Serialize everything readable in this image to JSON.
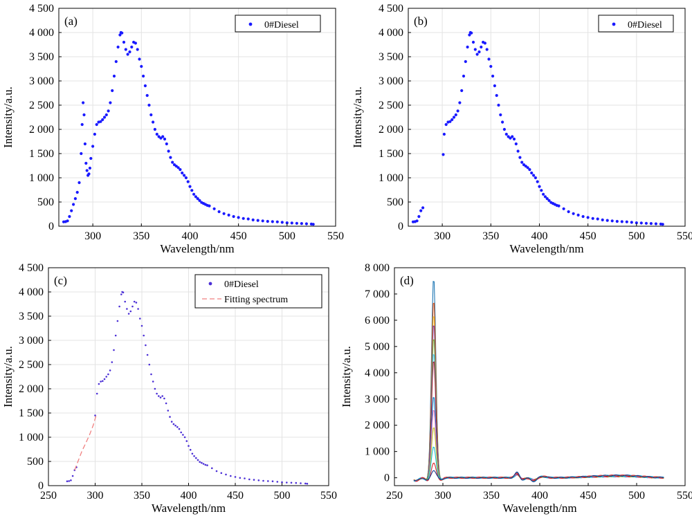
{
  "chart_data": [
    {
      "type": "scatter",
      "panel_label": "(a)",
      "xlabel": "Wavelength/nm",
      "ylabel": "Intensity/a.u.",
      "xlim": [
        265,
        550
      ],
      "ylim": [
        0,
        4500
      ],
      "xticks": [
        300,
        350,
        400,
        450,
        500,
        550
      ],
      "yticks": [
        0,
        500,
        1000,
        1500,
        2000,
        2500,
        3000,
        3500,
        4000,
        4500
      ],
      "ytick_labels": [
        "0",
        "500",
        "1 000",
        "1 500",
        "2 000",
        "2 500",
        "3 000",
        "3 500",
        "4 000",
        "4 500"
      ],
      "grid": true,
      "legend_position": "top-right",
      "series": [
        {
          "name": "0#Diesel",
          "color": "#1a1aff",
          "marker": "dot",
          "x": [
            270,
            272,
            274,
            276,
            278,
            280,
            282,
            284,
            286,
            288,
            289,
            290,
            291,
            292,
            293,
            294,
            295,
            296,
            297,
            298,
            300,
            302,
            304,
            306,
            308,
            310,
            312,
            314,
            316,
            318,
            320,
            322,
            324,
            326,
            328,
            329,
            330,
            332,
            334,
            336,
            338,
            340,
            342,
            344,
            346,
            348,
            350,
            352,
            354,
            356,
            358,
            360,
            362,
            364,
            366,
            368,
            370,
            372,
            374,
            376,
            378,
            380,
            382,
            384,
            386,
            388,
            390,
            392,
            394,
            396,
            398,
            400,
            402,
            404,
            406,
            408,
            410,
            412,
            414,
            416,
            418,
            420,
            425,
            430,
            435,
            440,
            445,
            450,
            455,
            460,
            465,
            470,
            475,
            480,
            485,
            490,
            495,
            500,
            505,
            510,
            515,
            520,
            525,
            527
          ],
          "y": [
            90,
            95,
            110,
            200,
            320,
            450,
            570,
            700,
            900,
            1500,
            2100,
            2550,
            2300,
            1700,
            1300,
            1150,
            1050,
            1080,
            1200,
            1400,
            1650,
            1900,
            2100,
            2150,
            2160,
            2200,
            2250,
            2300,
            2380,
            2550,
            2800,
            3100,
            3400,
            3700,
            3950,
            4000,
            3990,
            3800,
            3650,
            3550,
            3600,
            3700,
            3800,
            3780,
            3650,
            3450,
            3300,
            3100,
            2900,
            2700,
            2500,
            2300,
            2150,
            2000,
            1900,
            1850,
            1820,
            1850,
            1800,
            1700,
            1550,
            1420,
            1320,
            1270,
            1240,
            1210,
            1170,
            1100,
            1050,
            1000,
            920,
            820,
            740,
            660,
            610,
            570,
            530,
            490,
            470,
            450,
            430,
            420,
            360,
            300,
            260,
            230,
            200,
            180,
            160,
            150,
            130,
            120,
            110,
            100,
            95,
            90,
            80,
            70,
            65,
            60,
            55,
            50,
            45,
            40
          ]
        }
      ]
    },
    {
      "type": "scatter",
      "panel_label": "(b)",
      "xlabel": "Wavelength/nm",
      "ylabel": "Intensity/a.u.",
      "xlim": [
        265,
        550
      ],
      "ylim": [
        0,
        4500
      ],
      "xticks": [
        300,
        350,
        400,
        450,
        500,
        550
      ],
      "yticks": [
        0,
        500,
        1000,
        1500,
        2000,
        2500,
        3000,
        3500,
        4000,
        4500
      ],
      "ytick_labels": [
        "0",
        "500",
        "1 000",
        "1 500",
        "2 000",
        "2 500",
        "3 000",
        "3 500",
        "4 000",
        "4 500"
      ],
      "grid": true,
      "legend_position": "top-right",
      "series": [
        {
          "name": "0#Diesel",
          "color": "#1a1aff",
          "marker": "dot",
          "x": [
            270,
            272,
            274,
            276,
            278,
            280,
            301,
            302,
            304,
            306,
            308,
            310,
            312,
            314,
            316,
            318,
            320,
            322,
            324,
            326,
            328,
            329,
            330,
            332,
            334,
            336,
            338,
            340,
            342,
            344,
            346,
            348,
            350,
            352,
            354,
            356,
            358,
            360,
            362,
            364,
            366,
            368,
            370,
            372,
            374,
            376,
            378,
            380,
            382,
            384,
            386,
            388,
            390,
            392,
            394,
            396,
            398,
            400,
            402,
            404,
            406,
            408,
            410,
            412,
            414,
            416,
            418,
            420,
            425,
            430,
            435,
            440,
            445,
            450,
            455,
            460,
            465,
            470,
            475,
            480,
            485,
            490,
            495,
            500,
            505,
            510,
            515,
            520,
            525,
            527
          ],
          "y": [
            90,
            95,
            110,
            200,
            320,
            380,
            1480,
            1900,
            2100,
            2150,
            2160,
            2200,
            2250,
            2300,
            2380,
            2550,
            2800,
            3100,
            3400,
            3700,
            3950,
            4000,
            3990,
            3800,
            3650,
            3550,
            3600,
            3700,
            3800,
            3780,
            3650,
            3450,
            3300,
            3100,
            2900,
            2700,
            2500,
            2300,
            2150,
            2000,
            1900,
            1850,
            1820,
            1850,
            1800,
            1700,
            1550,
            1420,
            1320,
            1270,
            1240,
            1210,
            1170,
            1100,
            1050,
            1000,
            920,
            820,
            740,
            660,
            610,
            570,
            530,
            490,
            470,
            450,
            430,
            420,
            360,
            300,
            260,
            230,
            200,
            180,
            160,
            150,
            130,
            120,
            110,
            100,
            95,
            90,
            80,
            70,
            65,
            60,
            55,
            50,
            45,
            40
          ]
        }
      ]
    },
    {
      "type": "line",
      "panel_label": "(c)",
      "xlabel": "Wavelength/nm",
      "ylabel": "Intensity/a.u.",
      "xlim": [
        250,
        550
      ],
      "ylim": [
        0,
        4500
      ],
      "xticks": [
        250,
        300,
        350,
        400,
        450,
        500,
        550
      ],
      "yticks": [
        0,
        500,
        1000,
        1500,
        2000,
        2500,
        3000,
        3500,
        4000,
        4500
      ],
      "ytick_labels": [
        "0",
        "500",
        "1 000",
        "1 500",
        "2 000",
        "2 500",
        "3 000",
        "3 500",
        "4 000",
        "4 500"
      ],
      "grid": true,
      "legend_position": "top-right",
      "series": [
        {
          "name": "0#Diesel",
          "color": "#4b2fd6",
          "marker": "dot",
          "x": [
            270,
            272,
            274,
            276,
            278,
            280,
            300,
            302,
            304,
            306,
            308,
            310,
            312,
            314,
            316,
            318,
            320,
            322,
            324,
            326,
            328,
            329,
            330,
            332,
            334,
            336,
            338,
            340,
            342,
            344,
            346,
            348,
            350,
            352,
            354,
            356,
            358,
            360,
            362,
            364,
            366,
            368,
            370,
            372,
            374,
            376,
            378,
            380,
            382,
            384,
            386,
            388,
            390,
            392,
            394,
            396,
            398,
            400,
            402,
            404,
            406,
            408,
            410,
            412,
            414,
            416,
            418,
            420,
            425,
            430,
            435,
            440,
            445,
            450,
            455,
            460,
            465,
            470,
            475,
            480,
            485,
            490,
            495,
            500,
            505,
            510,
            515,
            520,
            525,
            527
          ],
          "y": [
            90,
            95,
            110,
            200,
            320,
            380,
            1450,
            1900,
            2100,
            2150,
            2160,
            2200,
            2250,
            2300,
            2380,
            2550,
            2800,
            3100,
            3400,
            3700,
            3950,
            4000,
            3990,
            3800,
            3650,
            3550,
            3600,
            3700,
            3800,
            3780,
            3650,
            3450,
            3300,
            3100,
            2900,
            2700,
            2500,
            2300,
            2150,
            2000,
            1900,
            1850,
            1820,
            1850,
            1800,
            1700,
            1550,
            1420,
            1320,
            1270,
            1240,
            1210,
            1170,
            1100,
            1050,
            1000,
            920,
            820,
            740,
            660,
            610,
            570,
            530,
            490,
            470,
            450,
            430,
            420,
            360,
            300,
            260,
            230,
            200,
            180,
            160,
            150,
            130,
            120,
            110,
            100,
            95,
            90,
            80,
            70,
            65,
            60,
            55,
            50,
            45,
            40
          ]
        },
        {
          "name": "Fitting spectrum",
          "color": "#f08080",
          "style": "dashed",
          "x": [
            278,
            282,
            286,
            290,
            294,
            298,
            301
          ],
          "y": [
            320,
            520,
            720,
            880,
            1050,
            1250,
            1450
          ]
        }
      ]
    },
    {
      "type": "line",
      "panel_label": "(d)",
      "xlabel": "Wavelength/nm",
      "ylabel": "Intensity/a.u.",
      "xlim": [
        250,
        550
      ],
      "ylim": [
        -300,
        8000
      ],
      "xticks": [
        250,
        300,
        350,
        400,
        450,
        500,
        550
      ],
      "yticks": [
        0,
        1000,
        2000,
        3000,
        4000,
        5000,
        6000,
        7000,
        8000
      ],
      "ytick_labels": [
        "0",
        "1 000",
        "2 000",
        "3 000",
        "4 000",
        "5 000",
        "6 000",
        "7 000",
        "8 000"
      ],
      "grid": false,
      "peak_heights": [
        7650,
        6800,
        6300,
        5900,
        5400,
        4800,
        4500,
        3150,
        2600,
        1950,
        1200,
        550,
        300
      ],
      "colors": [
        "#1f77b4",
        "#d95319",
        "#edb120",
        "#7e2f8e",
        "#77ac30",
        "#4dbeee",
        "#a2142f",
        "#0072bd",
        "#e377c2",
        "#bcbd22",
        "#17becf",
        "#d62728",
        "#1f3a93"
      ]
    }
  ]
}
